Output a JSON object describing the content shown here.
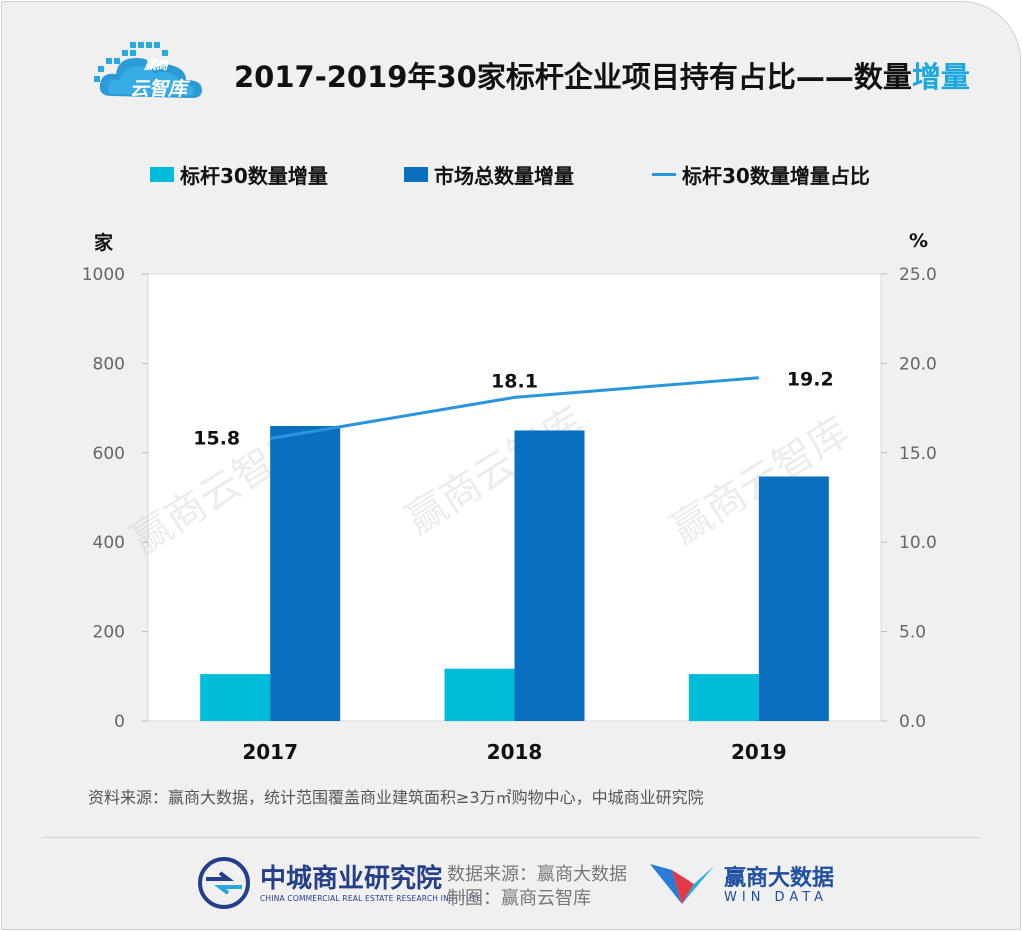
{
  "brand": {
    "logo_line1": "赢商",
    "logo_line2": "云智库",
    "watermark": "赢商云智库"
  },
  "header": {
    "title_main": "2017-2019年30家标杆企业项目持有占比——数量",
    "title_highlight": "增量"
  },
  "colors": {
    "bar_benchmark": "#00bcd9",
    "bar_market": "#0b6fc0",
    "line_ratio": "#2a95dd",
    "title_accent": "#1ba7e0"
  },
  "chart_data": {
    "type": "bar",
    "title": "2017-2019年30家标杆企业项目持有占比——数量增量",
    "categories": [
      "2017",
      "2018",
      "2019"
    ],
    "series": [
      {
        "name": "标杆30数量增量",
        "kind": "bar",
        "axis": "left",
        "values": [
          105,
          117,
          105
        ]
      },
      {
        "name": "市场总数量增量",
        "kind": "bar",
        "axis": "left",
        "values": [
          660,
          650,
          547
        ]
      },
      {
        "name": "标杆30数量增量占比",
        "kind": "line",
        "axis": "right",
        "values": [
          15.8,
          18.1,
          19.2
        ],
        "labels": [
          "15.8",
          "18.1",
          "19.2"
        ]
      }
    ],
    "ylabel_left": "家",
    "ylabel_right": "%",
    "ylim_left": [
      0,
      1000
    ],
    "ylim_right": [
      0,
      25
    ],
    "left_ticks": [
      "0",
      "200",
      "400",
      "600",
      "800",
      "1000"
    ],
    "right_ticks": [
      "0.0",
      "5.0",
      "10.0",
      "15.0",
      "20.0",
      "25.0"
    ],
    "grid": false,
    "legend_position": "top"
  },
  "source": {
    "text": "资料来源：赢商大数据，统计范围覆盖商业建筑面积≥3万㎡购物中心，中城商业研究院"
  },
  "footer": {
    "ccri_name": "中城商业研究院",
    "ccri_en": "CHINA COMMERCIAL REAL ESTATE RESEARCH INSTITUTE",
    "data_source": "数据来源：赢商大数据",
    "made_by": "制图：赢商云智库",
    "windata_name": "赢商大数据",
    "windata_en": "WIN DATA"
  }
}
